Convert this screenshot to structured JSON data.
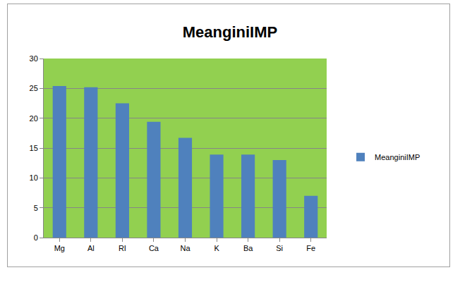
{
  "chart_data": {
    "type": "bar",
    "title": "MeanginiIMP",
    "categories": [
      "Mg",
      "Al",
      "RI",
      "Ca",
      "Na",
      "K",
      "Ba",
      "Si",
      "Fe"
    ],
    "series": [
      {
        "name": "MeanginiIMP",
        "color": "#4f81bd",
        "values": [
          25.4,
          25.2,
          22.5,
          19.4,
          16.7,
          13.9,
          13.9,
          13.0,
          7.0
        ]
      }
    ],
    "ylim": [
      0,
      30
    ],
    "yticks": [
      0,
      5,
      10,
      15,
      20,
      25,
      30
    ],
    "grid": true,
    "legend": "right"
  }
}
